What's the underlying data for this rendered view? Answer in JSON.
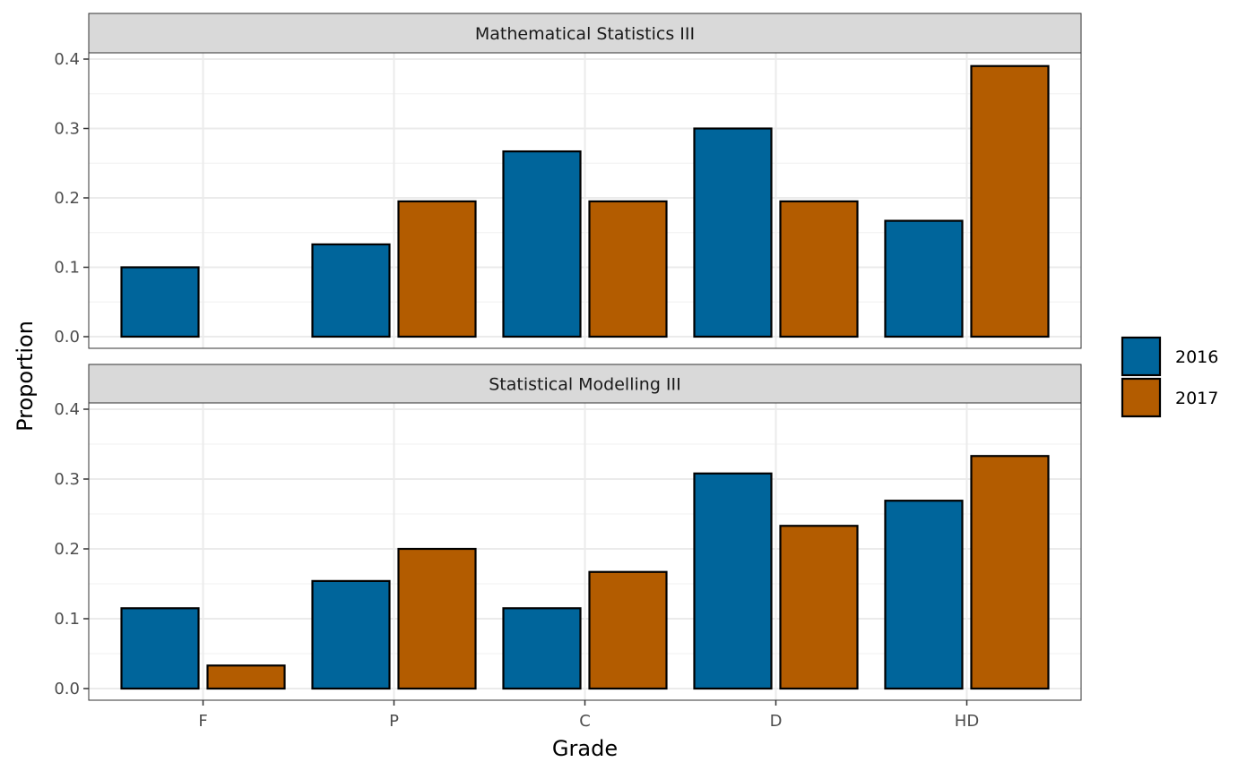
{
  "chart_data": {
    "type": "bar",
    "xlabel": "Grade",
    "ylabel": "Proportion",
    "categories": [
      "F",
      "P",
      "C",
      "D",
      "HD"
    ],
    "ylim": [
      0,
      0.4
    ],
    "y_ticks": [
      "0.0",
      "0.1",
      "0.2",
      "0.3",
      "0.4"
    ],
    "grid": true,
    "legend": {
      "position": "right",
      "entries": [
        {
          "label": "2016",
          "color": "#00659b"
        },
        {
          "label": "2017",
          "color": "#b35c00"
        }
      ]
    },
    "panels": [
      {
        "title": "Mathematical Statistics III",
        "series": [
          {
            "name": "2016",
            "values": [
              0.1,
              0.133,
              0.267,
              0.3,
              0.167
            ]
          },
          {
            "name": "2017",
            "values": [
              null,
              0.195,
              0.195,
              0.195,
              0.39
            ]
          }
        ]
      },
      {
        "title": "Statistical Modelling III",
        "series": [
          {
            "name": "2016",
            "values": [
              0.115,
              0.154,
              0.115,
              0.308,
              0.269
            ]
          },
          {
            "name": "2017",
            "values": [
              0.033,
              0.2,
              0.167,
              0.233,
              0.333
            ]
          }
        ]
      }
    ]
  }
}
